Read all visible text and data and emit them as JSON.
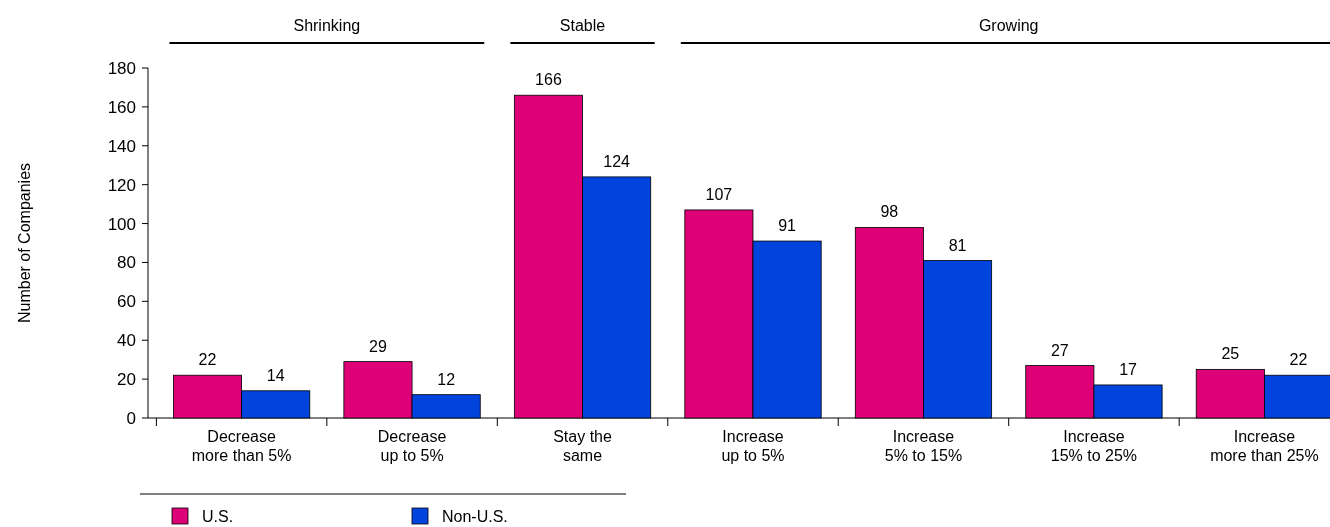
{
  "chart_data": {
    "type": "bar",
    "ylabel": "Number of Companies",
    "categories": [
      "Decrease\nmore than 5%",
      "Decrease\nup to 5%",
      "Stay the\nsame",
      "Increase\nup to 5%",
      "Increase\n5% to 15%",
      "Increase\n15% to 25%",
      "Increase\nmore than 25%"
    ],
    "series": [
      {
        "name": "U.S.",
        "color": "#dd0077",
        "values": [
          22,
          29,
          166,
          107,
          98,
          27,
          25
        ]
      },
      {
        "name": "Non-U.S.",
        "color": "#0044dd",
        "values": [
          14,
          12,
          124,
          91,
          81,
          17,
          22
        ]
      }
    ],
    "ylim": [
      0,
      180
    ],
    "yticks": [
      0,
      20,
      40,
      60,
      80,
      100,
      120,
      140,
      160,
      180
    ],
    "data_labels": true,
    "legend": "bottom left",
    "grid": false,
    "annotations": [
      "Shrinking",
      "Stable",
      "Growing"
    ]
  }
}
